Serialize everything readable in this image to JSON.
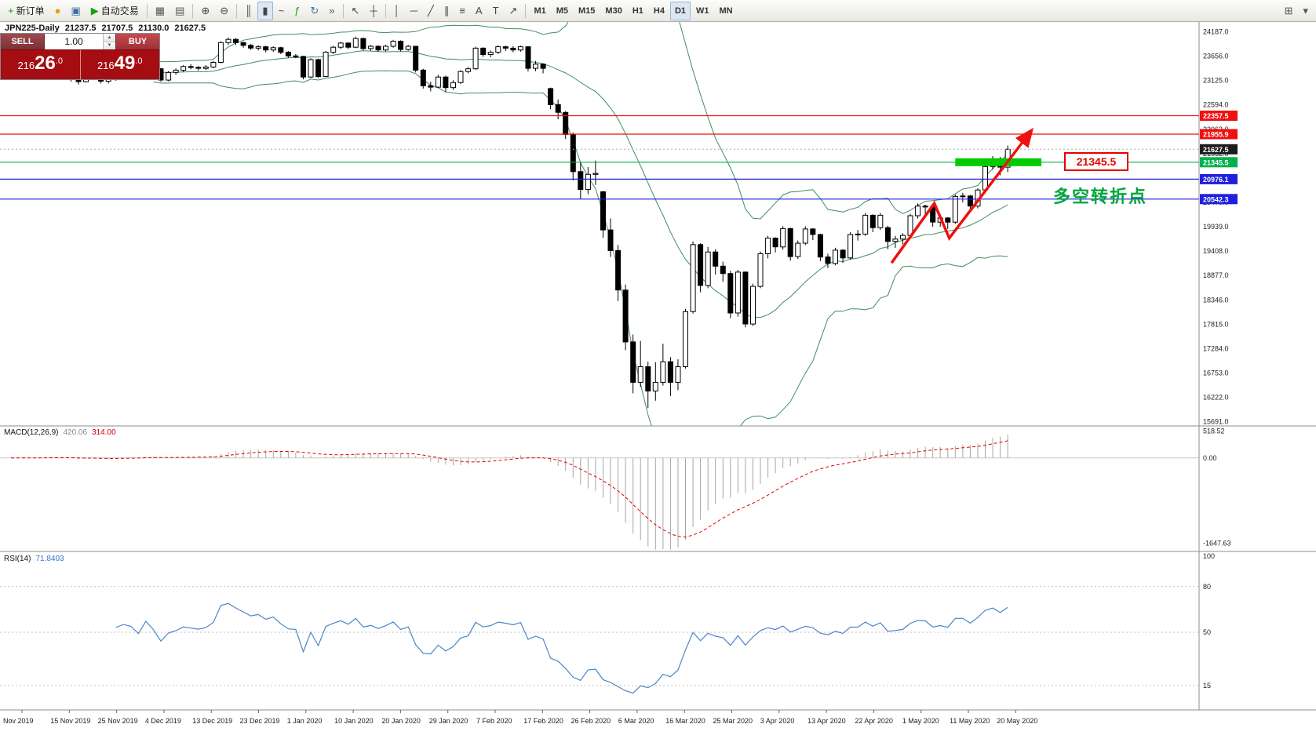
{
  "toolbar": {
    "items": [
      {
        "name": "new-order-button",
        "glyph": "+",
        "color": "#17a017",
        "label": "新订单"
      },
      {
        "name": "alert-icon-button",
        "glyph": "●",
        "color": "#e0a000"
      },
      {
        "name": "data-window-button",
        "glyph": "▣",
        "color": "#3b6ea5"
      },
      {
        "name": "auto-trading-button",
        "glyph": "▶",
        "color": "#17a017",
        "label": "自动交易"
      },
      {
        "sep": true
      },
      {
        "name": "tile-windows-button",
        "glyph": "▦",
        "color": "#555555"
      },
      {
        "name": "cascade-windows-button",
        "glyph": "▤",
        "color": "#555555"
      },
      {
        "sep": true
      },
      {
        "name": "zoom-in-button",
        "glyph": "⊕",
        "color": "#444444"
      },
      {
        "name": "zoom-out-button",
        "glyph": "⊖",
        "color": "#444444"
      },
      {
        "sep": true
      },
      {
        "name": "bar-chart-button",
        "glyph": "║",
        "color": "#444444"
      },
      {
        "name": "candlestick-chart-button",
        "glyph": "▮",
        "color": "#444444",
        "active": true
      },
      {
        "name": "line-chart-button",
        "glyph": "~",
        "color": "#444444"
      },
      {
        "name": "indicators-button",
        "glyph": "ƒ",
        "color": "#17a017"
      },
      {
        "name": "auto-scroll-button",
        "glyph": "↻",
        "color": "#3b6ea5"
      },
      {
        "name": "chart-shift-button",
        "glyph": "»",
        "color": "#555555"
      },
      {
        "sep": true
      },
      {
        "name": "cursor-button",
        "glyph": "↖",
        "color": "#444444"
      },
      {
        "name": "crosshair-button",
        "glyph": "┼",
        "color": "#444444"
      },
      {
        "sep": true
      },
      {
        "name": "vertical-line-button",
        "glyph": "│",
        "color": "#444444"
      },
      {
        "name": "horizontal-line-button",
        "glyph": "─",
        "color": "#444444"
      },
      {
        "name": "trendline-button",
        "glyph": "╱",
        "color": "#444444"
      },
      {
        "name": "channel-button",
        "glyph": "∥",
        "color": "#444444"
      },
      {
        "name": "fibonacci-button",
        "glyph": "≡",
        "color": "#444444"
      },
      {
        "name": "text-button",
        "glyph": "A",
        "color": "#444444"
      },
      {
        "name": "label-button",
        "glyph": "T",
        "color": "#444444"
      },
      {
        "name": "arrows-button",
        "glyph": "↗",
        "color": "#444444"
      },
      {
        "sep": true
      },
      {
        "name": "timeframe-m1",
        "label": "M1",
        "tf": true
      },
      {
        "name": "timeframe-m5",
        "label": "M5",
        "tf": true
      },
      {
        "name": "timeframe-m15",
        "label": "M15",
        "tf": true
      },
      {
        "name": "timeframe-m30",
        "label": "M30",
        "tf": true
      },
      {
        "name": "timeframe-h1",
        "label": "H1",
        "tf": true
      },
      {
        "name": "timeframe-h4",
        "label": "H4",
        "tf": true
      },
      {
        "name": "timeframe-d1",
        "label": "D1",
        "tf": true,
        "active": true
      },
      {
        "name": "timeframe-w1",
        "label": "W1",
        "tf": true
      },
      {
        "name": "timeframe-mn",
        "label": "MN",
        "tf": true
      },
      {
        "name": "window-layout-button",
        "glyph": "⊞",
        "color": "#555555",
        "right": true
      },
      {
        "name": "options-button",
        "glyph": "▾",
        "color": "#555555"
      }
    ]
  },
  "chart": {
    "symbol_title": "JPN225-Daily",
    "ohlc": {
      "open": "21237.5",
      "high": "21707.5",
      "low": "21130.0",
      "close": "21627.5"
    }
  },
  "trade_panel": {
    "sell_label": "SELL",
    "buy_label": "BUY",
    "volume": "1.00",
    "sell_price": "21626.0",
    "buy_price": "21649.0"
  },
  "chart_data": {
    "type": "candlestick",
    "symbol": "JPN225",
    "timeframe": "Daily",
    "price_axis_ticks": [
      24187.0,
      23656.0,
      23125.0,
      22594.0,
      22063.0,
      21532.0,
      21001.0,
      20470.0,
      19939.0,
      19408.0,
      18877.0,
      18346.0,
      17815.0,
      17284.0,
      16753.0,
      16222.0,
      15691.0
    ],
    "price_labels": [
      {
        "text": "22357.5",
        "color": "#ee1111"
      },
      {
        "text": "21955.9",
        "color": "#ee1111"
      },
      {
        "text": "21627.5",
        "color": "#1c1c1c"
      },
      {
        "text": "21345.5",
        "color": "#00b050"
      },
      {
        "text": "20976.1",
        "color": "#1f1fdd"
      },
      {
        "text": "20542.3",
        "color": "#1f1fdd"
      }
    ],
    "hlines": [
      {
        "price": 22357.5,
        "color": "#ee1111"
      },
      {
        "price": 21955.9,
        "color": "#ee1111"
      },
      {
        "price": 21345.5,
        "color": "#00b050"
      },
      {
        "price": 20976.1,
        "color": "#1f1fdd"
      },
      {
        "price": 20542.3,
        "color": "#1f1fdd"
      }
    ],
    "current_price": 21627.5,
    "x_labels": [
      "Nov 2019",
      "15 Nov 2019",
      "25 Nov 2019",
      "4 Dec 2019",
      "13 Dec 2019",
      "23 Dec 2019",
      "1 Jan 2020",
      "10 Jan 2020",
      "20 Jan 2020",
      "29 Jan 2020",
      "7 Feb 2020",
      "17 Feb 2020",
      "26 Feb 2020",
      "6 Mar 2020",
      "16 Mar 2020",
      "25 Mar 2020",
      "3 Apr 2020",
      "13 Apr 2020",
      "22 Apr 2020",
      "1 May 2020",
      "11 May 2020",
      "20 May 2020"
    ],
    "candles": [
      [
        23250,
        23340,
        23200,
        23290
      ],
      [
        23290,
        23370,
        23240,
        23320
      ],
      [
        23320,
        23360,
        23230,
        23280
      ],
      [
        23280,
        23400,
        23260,
        23350
      ],
      [
        23350,
        23390,
        23250,
        23300
      ],
      [
        23300,
        23380,
        23260,
        23340
      ],
      [
        23340,
        23460,
        23300,
        23420
      ],
      [
        23420,
        23450,
        23240,
        23290
      ],
      [
        23290,
        23330,
        23100,
        23150
      ],
      [
        23150,
        23210,
        23040,
        23100
      ],
      [
        23100,
        23330,
        23080,
        23300
      ],
      [
        23300,
        23420,
        23260,
        23380
      ],
      [
        23380,
        23400,
        23060,
        23110
      ],
      [
        23110,
        23220,
        23060,
        23150
      ],
      [
        23150,
        23410,
        23120,
        23380
      ],
      [
        23380,
        23480,
        23340,
        23440
      ],
      [
        23440,
        23490,
        23360,
        23410
      ],
      [
        23410,
        23450,
        23230,
        23290
      ],
      [
        23290,
        23560,
        23270,
        23530
      ],
      [
        23530,
        23560,
        23330,
        23380
      ],
      [
        23380,
        23400,
        23100,
        23135
      ],
      [
        23135,
        23330,
        23110,
        23300
      ],
      [
        23300,
        23390,
        23250,
        23350
      ],
      [
        23350,
        23460,
        23310,
        23430
      ],
      [
        23430,
        23480,
        23370,
        23410
      ],
      [
        23410,
        23440,
        23340,
        23390
      ],
      [
        23390,
        23460,
        23350,
        23420
      ],
      [
        23420,
        23550,
        23390,
        23520
      ],
      [
        23520,
        23980,
        23500,
        23950
      ],
      [
        23950,
        24060,
        23900,
        24020
      ],
      [
        24020,
        24050,
        23900,
        23950
      ],
      [
        23950,
        23970,
        23840,
        23890
      ],
      [
        23890,
        23920,
        23790,
        23830
      ],
      [
        23830,
        23890,
        23780,
        23860
      ],
      [
        23860,
        23880,
        23740,
        23790
      ],
      [
        23790,
        23870,
        23750,
        23840
      ],
      [
        23840,
        23860,
        23700,
        23740
      ],
      [
        23740,
        23770,
        23620,
        23660
      ],
      [
        23660,
        23700,
        23610,
        23650
      ],
      [
        23650,
        23660,
        23150,
        23200
      ],
      [
        23200,
        23610,
        23180,
        23580
      ],
      [
        23580,
        23600,
        23180,
        23210
      ],
      [
        23210,
        23770,
        23200,
        23740
      ],
      [
        23740,
        23880,
        23700,
        23850
      ],
      [
        23850,
        23970,
        23810,
        23940
      ],
      [
        23940,
        23960,
        23810,
        23850
      ],
      [
        23850,
        24080,
        23830,
        24040
      ],
      [
        24040,
        24060,
        23780,
        23820
      ],
      [
        23820,
        23900,
        23770,
        23870
      ],
      [
        23870,
        23890,
        23750,
        23790
      ],
      [
        23790,
        23900,
        23760,
        23870
      ],
      [
        23870,
        24010,
        23840,
        23980
      ],
      [
        23980,
        24000,
        23760,
        23800
      ],
      [
        23800,
        23900,
        23770,
        23870
      ],
      [
        23870,
        23880,
        23300,
        23350
      ],
      [
        23350,
        23380,
        22950,
        23010
      ],
      [
        23010,
        23100,
        22890,
        22980
      ],
      [
        22980,
        23250,
        22960,
        23200
      ],
      [
        23200,
        23230,
        22880,
        22970
      ],
      [
        22970,
        23130,
        22920,
        23080
      ],
      [
        23080,
        23350,
        23050,
        23320
      ],
      [
        23320,
        23420,
        23280,
        23380
      ],
      [
        23380,
        23860,
        23360,
        23830
      ],
      [
        23830,
        23850,
        23640,
        23690
      ],
      [
        23690,
        23780,
        23630,
        23740
      ],
      [
        23740,
        23890,
        23700,
        23860
      ],
      [
        23860,
        23880,
        23770,
        23830
      ],
      [
        23830,
        23870,
        23740,
        23790
      ],
      [
        23790,
        23880,
        23750,
        23860
      ],
      [
        23860,
        23870,
        23320,
        23390
      ],
      [
        23390,
        23550,
        23330,
        23480
      ],
      [
        23480,
        23500,
        23280,
        23390
      ],
      [
        22950,
        22970,
        22500,
        22600
      ],
      [
        22600,
        22710,
        22280,
        22430
      ],
      [
        22430,
        22460,
        21850,
        21950
      ],
      [
        21950,
        21990,
        20950,
        21140
      ],
      [
        21140,
        21340,
        20550,
        20750
      ],
      [
        20750,
        21240,
        20650,
        21080
      ],
      [
        21080,
        21380,
        20850,
        21100
      ],
      [
        20700,
        20720,
        19700,
        19870
      ],
      [
        19870,
        20120,
        19280,
        19420
      ],
      [
        19420,
        19540,
        18320,
        18560
      ],
      [
        18560,
        18680,
        17250,
        17430
      ],
      [
        17430,
        17590,
        16310,
        16550
      ],
      [
        16550,
        17450,
        16450,
        16890
      ],
      [
        16890,
        17000,
        15990,
        16360
      ],
      [
        16360,
        16990,
        16150,
        16550
      ],
      [
        16550,
        17390,
        16480,
        17000
      ],
      [
        17000,
        17100,
        16250,
        16550
      ],
      [
        16550,
        17050,
        16380,
        16890
      ],
      [
        16890,
        18150,
        16850,
        18090
      ],
      [
        18090,
        19620,
        18050,
        19550
      ],
      [
        19550,
        19580,
        18510,
        18660
      ],
      [
        18660,
        19500,
        18600,
        19390
      ],
      [
        19390,
        19450,
        18900,
        19080
      ],
      [
        19080,
        19180,
        18740,
        18920
      ],
      [
        18920,
        18980,
        17950,
        18060
      ],
      [
        18060,
        19000,
        17980,
        18950
      ],
      [
        18950,
        18970,
        17750,
        17820
      ],
      [
        17820,
        18700,
        17780,
        18640
      ],
      [
        18640,
        19400,
        18600,
        19350
      ],
      [
        19350,
        19740,
        19250,
        19690
      ],
      [
        19690,
        19710,
        19380,
        19500
      ],
      [
        19500,
        19950,
        19440,
        19900
      ],
      [
        19900,
        19920,
        19200,
        19290
      ],
      [
        19290,
        19640,
        19240,
        19580
      ],
      [
        19580,
        19950,
        19540,
        19890
      ],
      [
        19890,
        19910,
        19650,
        19770
      ],
      [
        19770,
        19790,
        19190,
        19280
      ],
      [
        19280,
        19350,
        19040,
        19140
      ],
      [
        19140,
        19480,
        19100,
        19430
      ],
      [
        19430,
        19450,
        19150,
        19260
      ],
      [
        19260,
        19820,
        19220,
        19770
      ],
      [
        19770,
        19870,
        19640,
        19780
      ],
      [
        19780,
        20240,
        19740,
        20190
      ],
      [
        20190,
        20210,
        19820,
        19920
      ],
      [
        19920,
        20240,
        19870,
        20190
      ],
      [
        19920,
        19960,
        19450,
        19620
      ],
      [
        19620,
        19740,
        19480,
        19670
      ],
      [
        19670,
        19800,
        19560,
        19750
      ],
      [
        19750,
        20220,
        19710,
        20180
      ],
      [
        20180,
        20450,
        20120,
        20390
      ],
      [
        20390,
        20420,
        20200,
        20370
      ],
      [
        20370,
        20390,
        19940,
        20040
      ],
      [
        20040,
        20210,
        19940,
        20130
      ],
      [
        20130,
        20150,
        19890,
        20040
      ],
      [
        20040,
        20640,
        20000,
        20600
      ],
      [
        20600,
        20680,
        20470,
        20610
      ],
      [
        20610,
        20630,
        20280,
        20390
      ],
      [
        20390,
        20780,
        20340,
        20740
      ],
      [
        20740,
        21290,
        20700,
        21250
      ],
      [
        21250,
        21480,
        21180,
        21420
      ],
      [
        21420,
        21460,
        21060,
        21237.5
      ],
      [
        21237.5,
        21707.5,
        21130.0,
        21627.5
      ]
    ],
    "indicators": {
      "bollinger": {
        "period": 20,
        "deviation": 2,
        "color": "#3e8e5a"
      },
      "macd": {
        "name": "MACD(12,26,9)",
        "value_main": "420.06",
        "value_signal": "314.00",
        "axis": [
          "518.52",
          "0.00",
          "-1647.63"
        ],
        "hist_color": "#a6a6a6",
        "signal_color": "#e00000"
      },
      "rsi": {
        "name": "RSI(14)",
        "value": "71.8403",
        "color": "#4a86c8",
        "axis_labels": [
          "100",
          "80",
          "50",
          "15"
        ],
        "levels": [
          80,
          50,
          15
        ]
      }
    },
    "annotations": {
      "highlight": {
        "from_index": 126,
        "to_index": 137.5,
        "price": 21345.5,
        "color": "#00cc00"
      },
      "arrow": {
        "points": [
          [
            117.5,
            19150
          ],
          [
            123.2,
            20450
          ],
          [
            125.2,
            19690
          ],
          [
            136,
            22000
          ]
        ],
        "color": "#ee1111"
      },
      "callout": "21345.5",
      "note": "多空转折点"
    }
  }
}
